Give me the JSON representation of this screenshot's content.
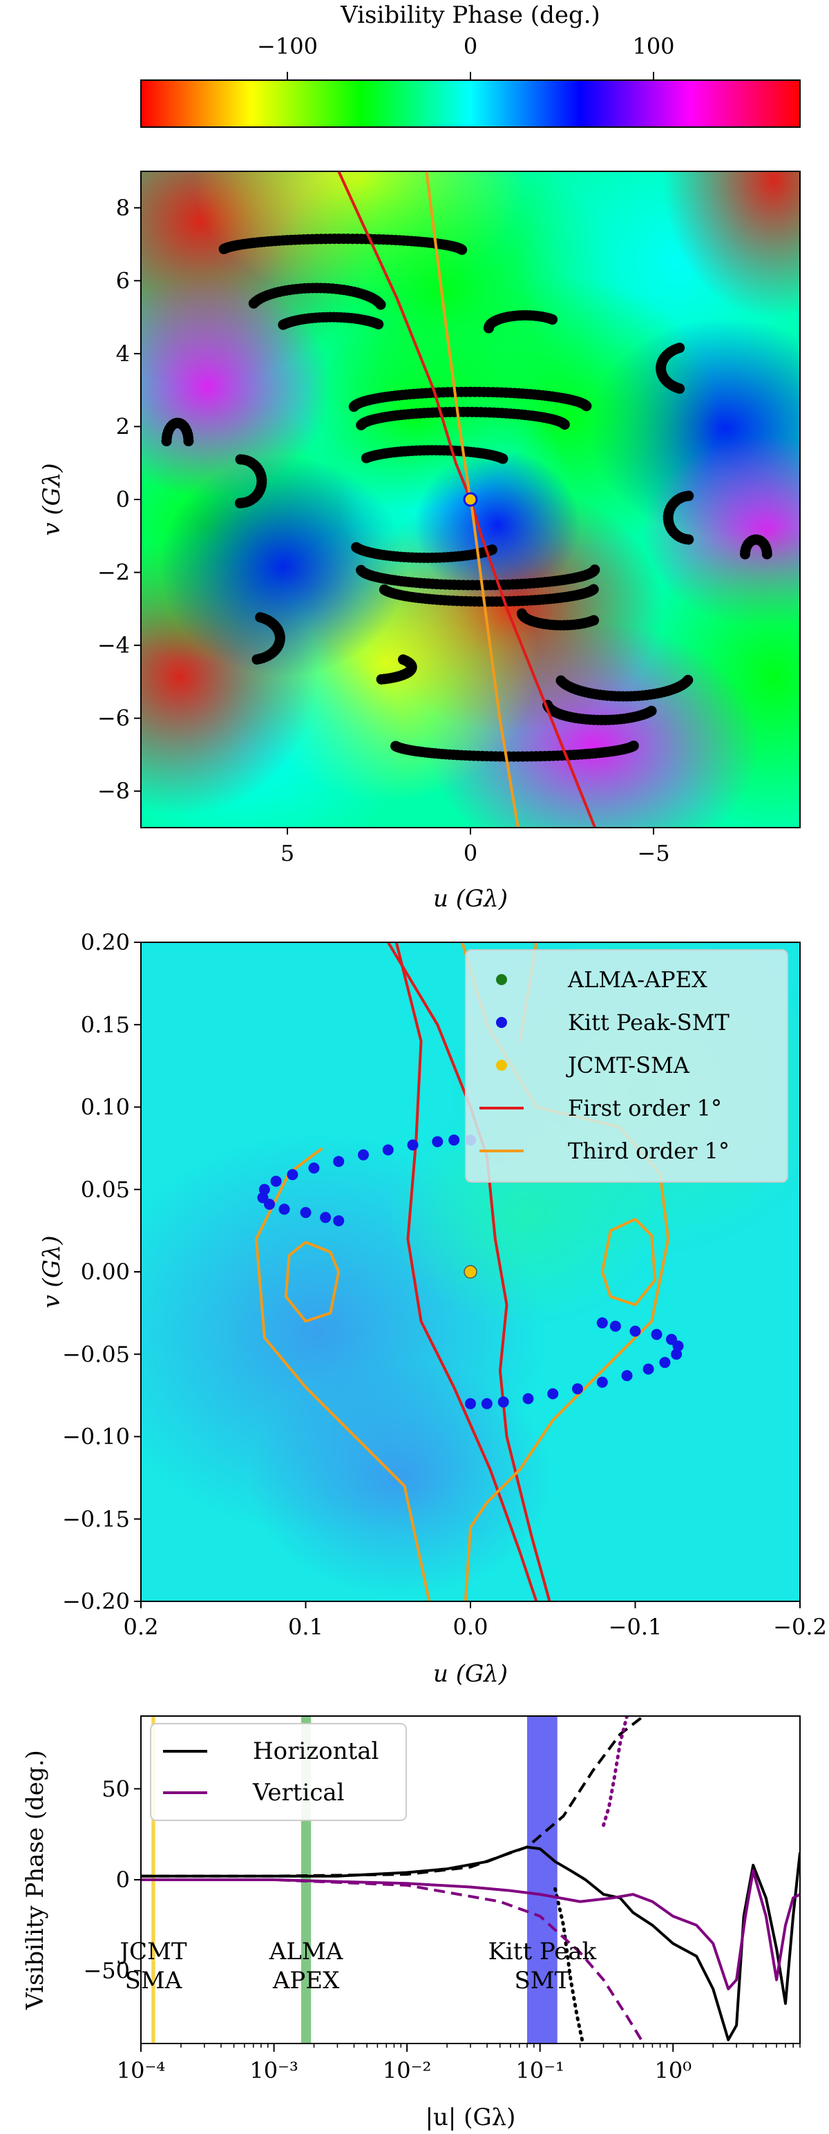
{
  "colorbar": {
    "label": "Visibility Phase (deg.)",
    "ticks": [
      -100,
      0,
      100
    ],
    "tick_labels": [
      "−100",
      "0",
      "100"
    ],
    "range": [
      -180,
      180
    ],
    "colormap": "hsv"
  },
  "panel1": {
    "xlabel": "u (Gλ)",
    "ylabel": "v (Gλ)",
    "xlim": [
      9,
      -9
    ],
    "ylim": [
      -9,
      9
    ],
    "xticks": [
      5,
      0,
      -5
    ],
    "xtick_labels": [
      "5",
      "0",
      "−5"
    ],
    "yticks": [
      8,
      6,
      4,
      2,
      0,
      -2,
      -4,
      -6,
      -8
    ],
    "ytick_labels": [
      "8",
      "6",
      "4",
      "2",
      "0",
      "−2",
      "−4",
      "−6",
      "−8"
    ]
  },
  "panel2": {
    "xlabel": "u (Gλ)",
    "ylabel": "v (Gλ)",
    "xlim": [
      0.2,
      -0.2
    ],
    "ylim": [
      -0.2,
      0.2
    ],
    "xticks": [
      0.2,
      0.1,
      0.0,
      -0.1,
      -0.2
    ],
    "xtick_labels": [
      "0.2",
      "0.1",
      "0.0",
      "−0.1",
      "−0.2"
    ],
    "yticks": [
      0.2,
      0.15,
      0.1,
      0.05,
      0.0,
      -0.05,
      -0.1,
      -0.15,
      -0.2
    ],
    "ytick_labels": [
      "0.20",
      "0.15",
      "0.10",
      "0.05",
      "0.00",
      "−0.05",
      "−0.10",
      "−0.15",
      "−0.20"
    ],
    "legend": [
      {
        "label": "ALMA-APEX",
        "kind": "marker",
        "color": "#1a7a1a"
      },
      {
        "label": "Kitt Peak-SMT",
        "kind": "marker",
        "color": "#1414e6"
      },
      {
        "label": "JCMT-SMA",
        "kind": "marker",
        "color": "#f2c200"
      },
      {
        "label": "First order 1°",
        "kind": "line",
        "color": "#e01b1b"
      },
      {
        "label": "Third order 1°",
        "kind": "line",
        "color": "#f29a1b"
      }
    ],
    "legend_position": "top-right"
  },
  "panel3": {
    "xlabel": "|u| (Gλ)",
    "ylabel": "Visibility Phase (deg.)",
    "xscale": "log",
    "xlim": [
      0.0001,
      9
    ],
    "ylim": [
      -90,
      90
    ],
    "xticks": [
      0.0001,
      0.001,
      0.01,
      0.1,
      1
    ],
    "xtick_labels": [
      "10⁻⁴",
      "10⁻³",
      "10⁻²",
      "10⁻¹",
      "10⁰"
    ],
    "yticks": [
      50,
      0,
      -50
    ],
    "ytick_labels": [
      "50",
      "0",
      "−50"
    ],
    "legend": [
      {
        "label": "Horizontal",
        "color": "#000000"
      },
      {
        "label": "Vertical",
        "color": "#800080"
      }
    ],
    "legend_position": "top-left",
    "bands": [
      {
        "label_lines": [
          "JCMT",
          "SMA"
        ],
        "x0": 0.00012,
        "x1": 0.000128,
        "color": "#f2c200"
      },
      {
        "label_lines": [
          "ALMA",
          "APEX"
        ],
        "x0": 0.0016,
        "x1": 0.0019,
        "color": "#4caf50"
      },
      {
        "label_lines": [
          "Kitt Peak",
          "SMT"
        ],
        "x0": 0.08,
        "x1": 0.135,
        "color": "#2a2af0"
      }
    ]
  },
  "chart_data": [
    {
      "type": "heatmap",
      "title": "",
      "xlabel": "u (Gλ)",
      "ylabel": "v (Gλ)",
      "xlim": [
        9,
        -9
      ],
      "ylim": [
        -9,
        9
      ],
      "colorbar_label": "Visibility Phase (deg.)",
      "scatter_tracks": [
        {
          "uc": 3.5,
          "vc": 6.8,
          "a": 3.3,
          "b": 0.35,
          "t0": 0.2,
          "t1": 3.0
        },
        {
          "uc": 4.2,
          "vc": 5.2,
          "a": 1.8,
          "b": 0.6,
          "t0": 0.3,
          "t1": 2.9
        },
        {
          "uc": 3.8,
          "vc": 4.6,
          "a": 1.5,
          "b": 0.4,
          "t0": 0.5,
          "t1": 2.6
        },
        {
          "uc": -1.5,
          "vc": 4.7,
          "a": 1.0,
          "b": 0.35,
          "t0": 0.0,
          "t1": 2.4
        },
        {
          "uc": -6.0,
          "vc": 3.6,
          "a": 0.8,
          "b": 0.6,
          "t0": -1.2,
          "t1": 1.2
        },
        {
          "uc": 0.0,
          "vc": 2.5,
          "a": 3.2,
          "b": 0.45,
          "t0": 0.1,
          "t1": 3.0
        },
        {
          "uc": 0.2,
          "vc": 2.0,
          "a": 2.8,
          "b": 0.4,
          "t0": 0.1,
          "t1": 3.0
        },
        {
          "uc": 1.0,
          "vc": 1.0,
          "a": 2.0,
          "b": 0.35,
          "t0": 0.4,
          "t1": 2.8
        },
        {
          "uc": 6.3,
          "vc": 0.5,
          "a": 0.6,
          "b": 0.6,
          "t0": 1.6,
          "t1": 4.7
        },
        {
          "uc": 8.0,
          "vc": 1.6,
          "a": 0.3,
          "b": 0.5,
          "t0": 0.0,
          "t1": 3.14
        },
        {
          "uc": -6.0,
          "vc": -0.5,
          "a": 0.6,
          "b": 0.6,
          "t0": -1.5,
          "t1": 1.5
        },
        {
          "uc": -7.8,
          "vc": -1.5,
          "a": 0.3,
          "b": 0.4,
          "t0": 0.0,
          "t1": 3.14
        },
        {
          "uc": -0.2,
          "vc": -1.9,
          "a": 3.2,
          "b": 0.45,
          "t0": 3.2,
          "t1": 6.2
        },
        {
          "uc": -0.5,
          "vc": -2.4,
          "a": 2.9,
          "b": 0.4,
          "t0": 3.3,
          "t1": 6.1
        },
        {
          "uc": 1.2,
          "vc": -1.2,
          "a": 2.0,
          "b": 0.4,
          "t0": 3.6,
          "t1": 6.0
        },
        {
          "uc": -2.5,
          "vc": -3.1,
          "a": 1.1,
          "b": 0.35,
          "t0": 3.8,
          "t1": 6.2
        },
        {
          "uc": 6.0,
          "vc": -3.8,
          "a": 0.8,
          "b": 0.6,
          "t0": 1.9,
          "t1": 4.5
        },
        {
          "uc": -4.2,
          "vc": -4.8,
          "a": 1.8,
          "b": 0.6,
          "t0": 3.4,
          "t1": 6.0
        },
        {
          "uc": -3.6,
          "vc": -5.6,
          "a": 1.5,
          "b": 0.45,
          "t0": 3.6,
          "t1": 6.2
        },
        {
          "uc": 2.8,
          "vc": -4.6,
          "a": 1.2,
          "b": 0.35,
          "t0": 2.5,
          "t1": 4.4
        },
        {
          "uc": -1.2,
          "vc": -6.7,
          "a": 3.3,
          "b": 0.35,
          "t0": 3.3,
          "t1": 6.1
        }
      ],
      "first_order_contour": [
        [
          3.6,
          9.0
        ],
        [
          2.0,
          5.5
        ],
        [
          1.0,
          3.0
        ],
        [
          0.4,
          1.0
        ],
        [
          0.0,
          0.0
        ],
        [
          -0.3,
          -1.0
        ],
        [
          -1.0,
          -3.0
        ],
        [
          -2.2,
          -6.0
        ],
        [
          -3.4,
          -9.0
        ]
      ],
      "third_order_contour": [
        [
          1.2,
          9.0
        ],
        [
          0.7,
          5.0
        ],
        [
          0.3,
          2.0
        ],
        [
          0.05,
          0.3
        ],
        [
          -0.05,
          -0.3
        ],
        [
          -0.4,
          -3.0
        ],
        [
          -0.8,
          -6.0
        ],
        [
          -1.3,
          -9.0
        ]
      ],
      "center_points": [
        {
          "u": 0.0,
          "v": 0.0,
          "color": "#f2c200"
        }
      ]
    },
    {
      "type": "heatmap",
      "title": "",
      "xlabel": "u (Gλ)",
      "ylabel": "v (Gλ)",
      "xlim": [
        0.2,
        -0.2
      ],
      "ylim": [
        -0.2,
        0.2
      ],
      "series": [
        {
          "name": "ALMA-APEX",
          "type": "scatter",
          "points": [
            [
              0.0,
              0.0
            ]
          ]
        },
        {
          "name": "Kitt Peak-SMT",
          "type": "scatter",
          "points": [
            [
              0.0,
              0.08
            ],
            [
              0.01,
              0.08
            ],
            [
              0.02,
              0.079
            ],
            [
              0.035,
              0.077
            ],
            [
              0.05,
              0.074
            ],
            [
              0.065,
              0.071
            ],
            [
              0.08,
              0.067
            ],
            [
              0.095,
              0.063
            ],
            [
              0.108,
              0.059
            ],
            [
              0.118,
              0.055
            ],
            [
              0.125,
              0.05
            ],
            [
              0.126,
              0.045
            ],
            [
              0.122,
              0.041
            ],
            [
              0.113,
              0.038
            ],
            [
              0.1,
              0.036
            ],
            [
              0.088,
              0.033
            ],
            [
              0.08,
              0.031
            ],
            [
              0.0,
              -0.08
            ],
            [
              -0.01,
              -0.08
            ],
            [
              -0.02,
              -0.079
            ],
            [
              -0.035,
              -0.077
            ],
            [
              -0.05,
              -0.074
            ],
            [
              -0.065,
              -0.071
            ],
            [
              -0.08,
              -0.067
            ],
            [
              -0.095,
              -0.063
            ],
            [
              -0.108,
              -0.059
            ],
            [
              -0.118,
              -0.055
            ],
            [
              -0.125,
              -0.05
            ],
            [
              -0.126,
              -0.045
            ],
            [
              -0.122,
              -0.041
            ],
            [
              -0.113,
              -0.038
            ],
            [
              -0.1,
              -0.036
            ],
            [
              -0.088,
              -0.033
            ],
            [
              -0.08,
              -0.031
            ]
          ]
        },
        {
          "name": "JCMT-SMA",
          "type": "scatter",
          "points": [
            [
              0.0,
              0.0
            ]
          ]
        },
        {
          "name": "First order 1°",
          "type": "line",
          "lines": [
            [
              [
                0.045,
                0.2
              ],
              [
                0.03,
                0.14
              ],
              [
                0.033,
                0.08
              ],
              [
                0.038,
                0.02
              ],
              [
                0.03,
                -0.03
              ],
              [
                0.01,
                -0.07
              ],
              [
                -0.012,
                -0.12
              ],
              [
                -0.03,
                -0.17
              ],
              [
                -0.04,
                -0.2
              ]
            ],
            [
              [
                0.05,
                0.2
              ],
              [
                0.02,
                0.15
              ],
              [
                0.0,
                0.1
              ],
              [
                -0.01,
                0.07
              ],
              [
                -0.015,
                0.02
              ],
              [
                -0.022,
                -0.02
              ],
              [
                -0.018,
                -0.06
              ],
              [
                -0.022,
                -0.1
              ],
              [
                -0.037,
                -0.16
              ],
              [
                -0.048,
                -0.2
              ]
            ]
          ]
        },
        {
          "name": "Third order 1°",
          "type": "line",
          "lines": [
            [
              [
                0.005,
                0.2
              ],
              [
                -0.01,
                0.15
              ],
              [
                -0.04,
                0.1
              ],
              [
                -0.09,
                0.088
              ],
              [
                -0.115,
                0.06
              ],
              [
                -0.12,
                0.02
              ],
              [
                -0.11,
                -0.03
              ],
              [
                -0.08,
                -0.06
              ],
              [
                -0.05,
                -0.09
              ],
              [
                -0.03,
                -0.12
              ],
              [
                -0.01,
                -0.14
              ],
              [
                0.0,
                -0.155
              ],
              [
                0.003,
                -0.2
              ]
            ],
            [
              [
                -0.04,
                0.2
              ],
              [
                -0.03,
                0.14
              ]
            ],
            [
              [
                0.09,
                0.075
              ],
              [
                0.11,
                0.06
              ],
              [
                0.13,
                0.02
              ],
              [
                0.125,
                -0.04
              ],
              [
                0.1,
                -0.07
              ],
              [
                0.07,
                -0.1
              ],
              [
                0.04,
                -0.13
              ],
              [
                0.025,
                -0.2
              ]
            ],
            [
              [
                0.1,
                0.018
              ],
              [
                0.085,
                0.012
              ],
              [
                0.08,
                0.0
              ],
              [
                0.085,
                -0.025
              ],
              [
                0.1,
                -0.03
              ],
              [
                0.112,
                -0.015
              ],
              [
                0.11,
                0.01
              ],
              [
                0.1,
                0.018
              ]
            ],
            [
              [
                -0.1,
                0.032
              ],
              [
                -0.085,
                0.025
              ],
              [
                -0.08,
                0.0
              ],
              [
                -0.085,
                -0.015
              ],
              [
                -0.1,
                -0.02
              ],
              [
                -0.112,
                -0.005
              ],
              [
                -0.11,
                0.022
              ],
              [
                -0.1,
                0.032
              ]
            ]
          ]
        }
      ]
    },
    {
      "type": "line",
      "title": "",
      "xlabel": "|u| (Gλ)",
      "ylabel": "Visibility Phase (deg.)",
      "xscale": "log",
      "xlim": [
        0.0001,
        9
      ],
      "ylim": [
        -90,
        90
      ],
      "series": [
        {
          "name": "Horizontal",
          "style": "solid",
          "color": "#000000",
          "x": [
            0.0001,
            0.001,
            0.003,
            0.01,
            0.02,
            0.04,
            0.06,
            0.08,
            0.1,
            0.13,
            0.17,
            0.22,
            0.3,
            0.4,
            0.5,
            0.7,
            1.0,
            1.5,
            2.0,
            2.6,
            3.0,
            3.4,
            4.0,
            5.0,
            6.0,
            7.0,
            8.0,
            9.0
          ],
          "y": [
            2,
            2,
            2,
            4,
            6,
            10,
            15,
            18,
            17,
            10,
            5,
            0,
            -8,
            -10,
            -18,
            -25,
            -35,
            -42,
            -60,
            -88,
            -80,
            -20,
            8,
            -10,
            -38,
            -68,
            -20,
            15
          ]
        },
        {
          "name": "",
          "style": "dashed",
          "color": "#000000",
          "x": [
            0.0001,
            0.001,
            0.01,
            0.03,
            0.08,
            0.15,
            0.25,
            0.4,
            0.6
          ],
          "y": [
            2,
            2,
            3,
            7,
            18,
            35,
            60,
            80,
            90
          ]
        },
        {
          "name": "",
          "style": "dotted",
          "color": "#000000",
          "x": [
            0.13,
            0.15,
            0.17,
            0.19,
            0.21
          ],
          "y": [
            -5,
            -25,
            -55,
            -75,
            -90
          ]
        },
        {
          "name": "Vertical",
          "style": "solid",
          "color": "#800080",
          "x": [
            0.0001,
            0.001,
            0.003,
            0.01,
            0.03,
            0.06,
            0.1,
            0.2,
            0.35,
            0.5,
            0.7,
            1.0,
            1.5,
            2.0,
            2.6,
            3.0,
            3.5,
            4.0,
            5.0,
            6.0,
            7.0,
            8.0,
            9.0
          ],
          "y": [
            0,
            0,
            -1,
            -2,
            -4,
            -6,
            -8,
            -12,
            -10,
            -8,
            -12,
            -20,
            -25,
            -35,
            -60,
            -55,
            -20,
            5,
            -20,
            -55,
            -25,
            -10,
            -8
          ]
        },
        {
          "name": "",
          "style": "dashed",
          "color": "#800080",
          "x": [
            0.0001,
            0.001,
            0.01,
            0.05,
            0.1,
            0.2,
            0.3,
            0.45,
            0.6
          ],
          "y": [
            0,
            0,
            -3,
            -12,
            -20,
            -40,
            -55,
            -75,
            -90
          ]
        },
        {
          "name": "",
          "style": "dotted",
          "color": "#800080",
          "x": [
            0.3,
            0.33,
            0.36,
            0.4,
            0.45
          ],
          "y": [
            30,
            40,
            55,
            75,
            90
          ]
        }
      ]
    }
  ]
}
